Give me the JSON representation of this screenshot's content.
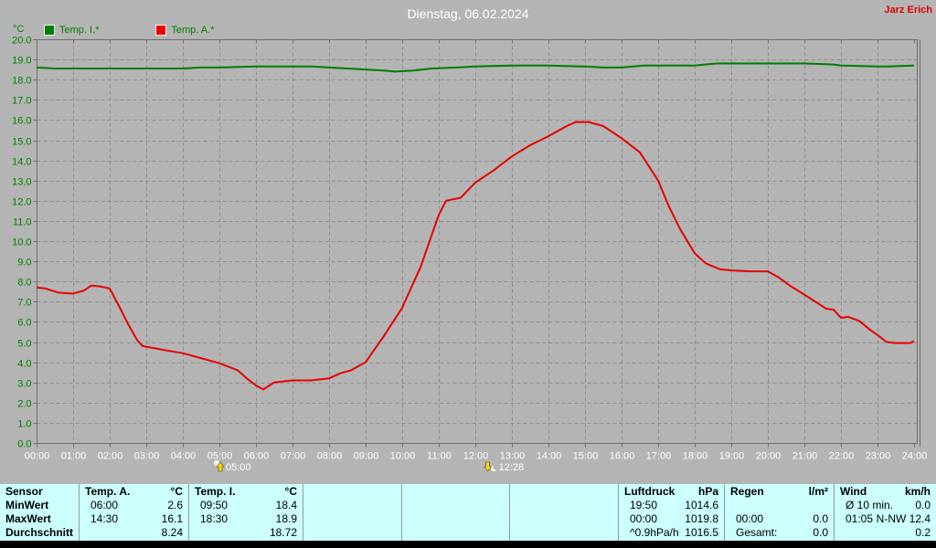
{
  "header": {
    "title": "Dienstag, 06.02.2024",
    "user": "Jarz Erich"
  },
  "legend": {
    "axis_unit": "°C",
    "items": [
      {
        "label": "Temp. I.*",
        "color": "#008000"
      },
      {
        "label": "Temp. A.*",
        "color": "#ee0000"
      }
    ]
  },
  "chart_data": {
    "type": "line",
    "title": "Dienstag, 06.02.2024",
    "ylabel": "°C",
    "xlabel": "",
    "ylim": [
      0,
      20
    ],
    "xlim": [
      0,
      24
    ],
    "ytick_step": 1.0,
    "grid": true,
    "legend_position": "top-left",
    "xtick_labels": [
      "00:00",
      "01:00",
      "02:00",
      "03:00",
      "04:00",
      "05:00",
      "06:00",
      "07:00",
      "08:00",
      "09:00",
      "10:00",
      "11:00",
      "12:00",
      "13:00",
      "14:00",
      "15:00",
      "16:00",
      "17:00",
      "18:00",
      "19:00",
      "20:00",
      "21:00",
      "22:00",
      "23:00",
      "24:00"
    ],
    "axis_label_color": "#008000",
    "xtick_label_color": "#ffffff",
    "series": [
      {
        "name": "Temp. I.*",
        "color": "#007c00",
        "x": [
          0,
          0.5,
          1,
          2,
          3,
          4,
          4.5,
          5,
          6,
          6.5,
          7,
          7.5,
          8,
          8.5,
          9,
          9.5,
          9.8,
          10.3,
          10.8,
          11.5,
          12,
          13,
          13.5,
          14,
          15,
          15.5,
          16,
          16.6,
          17,
          18,
          18.6,
          19,
          20,
          21,
          21.8,
          22,
          23,
          23.3,
          24
        ],
        "y": [
          18.6,
          18.55,
          18.55,
          18.55,
          18.55,
          18.55,
          18.6,
          18.6,
          18.65,
          18.65,
          18.65,
          18.65,
          18.6,
          18.55,
          18.5,
          18.45,
          18.4,
          18.45,
          18.55,
          18.6,
          18.65,
          18.7,
          18.7,
          18.7,
          18.65,
          18.6,
          18.6,
          18.7,
          18.7,
          18.7,
          18.8,
          18.8,
          18.8,
          18.8,
          18.75,
          18.7,
          18.65,
          18.65,
          18.7
        ]
      },
      {
        "name": "Temp. A.*",
        "color": "#e60000",
        "x": [
          0,
          0.25,
          0.6,
          1.0,
          1.3,
          1.5,
          1.75,
          2.0,
          2.25,
          2.5,
          2.75,
          2.9,
          3.5,
          4.0,
          4.5,
          5.0,
          5.5,
          5.75,
          6.0,
          6.2,
          6.5,
          7.0,
          7.5,
          8.0,
          8.3,
          8.6,
          9.0,
          9.5,
          10.0,
          10.5,
          10.75,
          11.0,
          11.2,
          11.6,
          12.0,
          12.5,
          13.0,
          13.5,
          14.0,
          14.5,
          14.75,
          15.1,
          15.5,
          16.0,
          16.5,
          16.75,
          17.0,
          17.3,
          17.6,
          18.0,
          18.3,
          18.7,
          19.0,
          19.5,
          20.0,
          20.3,
          20.6,
          21.0,
          21.3,
          21.6,
          21.8,
          22.0,
          22.2,
          22.5,
          22.8,
          23.0,
          23.25,
          23.5,
          23.9,
          24.0
        ],
        "y": [
          7.7,
          7.65,
          7.45,
          7.4,
          7.55,
          7.8,
          7.75,
          7.65,
          6.8,
          5.9,
          5.1,
          4.8,
          4.6,
          4.45,
          4.2,
          3.95,
          3.6,
          3.2,
          2.85,
          2.65,
          3.0,
          3.1,
          3.1,
          3.2,
          3.45,
          3.6,
          4.0,
          5.3,
          6.7,
          8.7,
          10.0,
          11.3,
          12.0,
          12.15,
          12.9,
          13.5,
          14.2,
          14.75,
          15.2,
          15.7,
          15.9,
          15.9,
          15.7,
          15.1,
          14.4,
          13.7,
          13.0,
          11.7,
          10.6,
          9.4,
          8.9,
          8.6,
          8.55,
          8.5,
          8.5,
          8.2,
          7.8,
          7.35,
          7.0,
          6.65,
          6.6,
          6.2,
          6.25,
          6.05,
          5.6,
          5.35,
          5.0,
          4.95,
          4.95,
          5.05
        ]
      }
    ],
    "markers": [
      {
        "time": 5.0,
        "label": "05:00",
        "icon": "sun-up-icon"
      },
      {
        "time": 12.466,
        "label": "12:28",
        "icon": "moon-down-icon"
      }
    ]
  },
  "stats_table": {
    "row_labels": [
      "Sensor",
      "MinWert",
      "MaxWert",
      "Durchschnitt"
    ],
    "groups": [
      {
        "name": "Temp. A.",
        "unit": "°C",
        "rows": [
          [
            "06:00",
            "2.6"
          ],
          [
            "14:30",
            "16.1"
          ],
          [
            "",
            "8.24"
          ]
        ]
      },
      {
        "name": "Temp. I.",
        "unit": "°C",
        "rows": [
          [
            "09:50",
            "18.4"
          ],
          [
            "18:30",
            "18.9"
          ],
          [
            "",
            "18.72"
          ]
        ]
      },
      {
        "name": "",
        "unit": "",
        "rows": [
          [
            "",
            ""
          ],
          [
            "",
            ""
          ],
          [
            "",
            ""
          ]
        ]
      },
      {
        "name": "",
        "unit": "",
        "rows": [
          [
            "",
            ""
          ],
          [
            "",
            ""
          ],
          [
            "",
            ""
          ]
        ]
      },
      {
        "name": "",
        "unit": "",
        "rows": [
          [
            "",
            ""
          ],
          [
            "",
            ""
          ],
          [
            "",
            ""
          ]
        ]
      },
      {
        "name": "Luftdruck",
        "unit": "hPa",
        "rows": [
          [
            "19:50",
            "1014.6"
          ],
          [
            "00:00",
            "1019.8"
          ],
          [
            "^0.9hPa/h",
            "1016.5"
          ]
        ]
      },
      {
        "name": "Regen",
        "unit": "l/m²",
        "rows": [
          [
            "",
            ""
          ],
          [
            "00:00",
            "0.0"
          ],
          [
            "Gesamt:",
            "0.0"
          ]
        ]
      },
      {
        "name": "Wind",
        "unit": "km/h",
        "rows": [
          [
            "Ø 10 min.",
            "0.0"
          ],
          [
            "01:05",
            "N-NW 12.4"
          ],
          [
            "",
            "0.2"
          ]
        ]
      }
    ]
  }
}
